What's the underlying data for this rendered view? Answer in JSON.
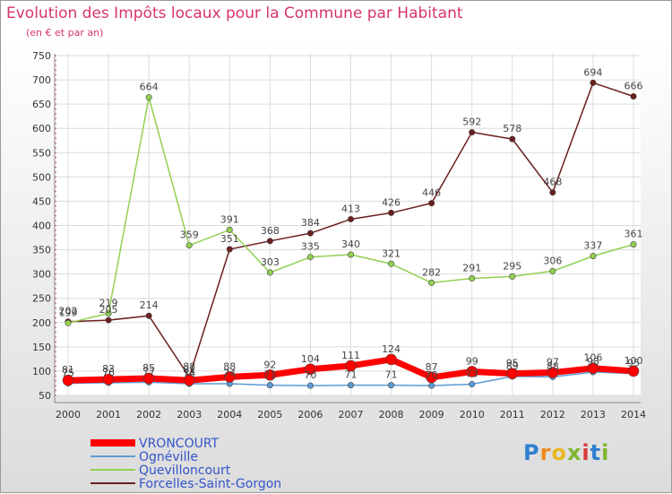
{
  "chart_data": {
    "type": "line",
    "title": "Evolution des Impôts locaux pour la Commune par Habitant",
    "subtitle": "(en € et par an)",
    "xlabel": "",
    "ylabel": "",
    "x": [
      "2000",
      "2001",
      "2002",
      "2003",
      "2004",
      "2005",
      "2006",
      "2007",
      "2008",
      "2009",
      "2010",
      "2011",
      "2012",
      "2013",
      "2014"
    ],
    "yticks": [
      50,
      100,
      150,
      200,
      250,
      300,
      350,
      400,
      450,
      500,
      550,
      600,
      650,
      700,
      750
    ],
    "ylim": [
      50,
      750
    ],
    "grid": true,
    "legend": "bottom-left",
    "series": [
      {
        "name": "VRONCOURT",
        "color": "#ff0000",
        "values": [
          81,
          83,
          85,
          81,
          88,
          92,
          104,
          111,
          124,
          87,
          99,
          95,
          97,
          106,
          100
        ]
      },
      {
        "name": "Ognéville",
        "color": "#5b9bd5",
        "values": [
          75,
          76,
          77,
          74,
          74,
          71,
          70,
          71,
          71,
          70,
          73,
          89,
          88,
          98,
          95
        ]
      },
      {
        "name": "Quevilloncourt",
        "color": "#92d050",
        "values": [
          199,
          219,
          664,
          359,
          391,
          303,
          335,
          340,
          321,
          282,
          291,
          295,
          306,
          337,
          361
        ]
      },
      {
        "name": "Forcelles-Saint-Gorgon",
        "color": "#6b1f1f",
        "values": [
          202,
          205,
          214,
          88,
          351,
          368,
          384,
          413,
          426,
          446,
          592,
          578,
          468,
          694,
          666
        ]
      }
    ]
  },
  "logo": {
    "letters": [
      "P",
      "r",
      "o",
      "x",
      "i",
      "t",
      "i"
    ]
  }
}
